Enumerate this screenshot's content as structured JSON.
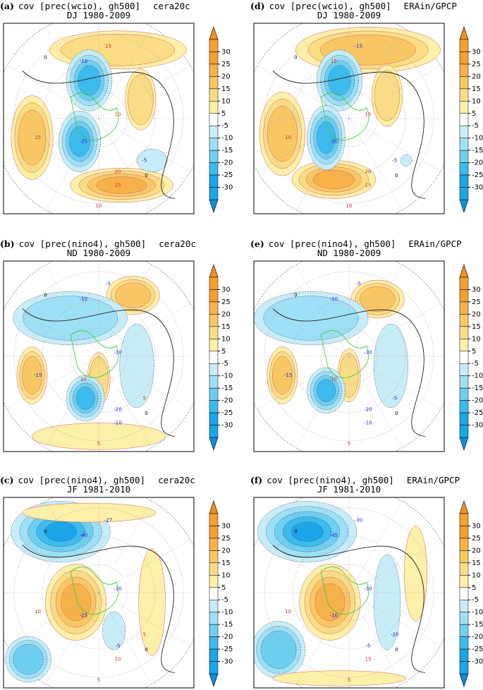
{
  "panels": [
    {
      "label": "(a)",
      "title": "cov [prec(wcio), gh500]",
      "dataset": "cera20c",
      "period": "DJ 1980-2009",
      "contour_labels": [
        "-10",
        "15",
        "10",
        "15",
        "-25",
        "20",
        "25",
        "10",
        "-5",
        "0",
        "0"
      ]
    },
    {
      "label": "(b)",
      "title": "cov [prec(nino4), gh500]",
      "dataset": "cera20c",
      "period": "ND 1980-2009",
      "contour_labels": [
        "-10",
        "-5",
        "-10",
        "-15",
        "10",
        "-20",
        "-10",
        "5",
        "5",
        "0",
        "0"
      ]
    },
    {
      "label": "(c)",
      "title": "cov [prec(nino4), gh500]",
      "dataset": "cera20c",
      "period": "JF 1981-2010",
      "contour_labels": [
        "-40",
        "-27",
        "-10",
        "10",
        "-15",
        "-5",
        "10",
        "5",
        "5",
        "0",
        "0"
      ]
    },
    {
      "label": "(d)",
      "title": "cov [prec(wcio), gh500]",
      "dataset": "ERAin/GPCP",
      "period": "DJ 1980-2009",
      "contour_labels": [
        "15",
        "-15",
        "15",
        "10",
        "-20",
        "20",
        "15",
        "10",
        "-5",
        "0",
        "0"
      ]
    },
    {
      "label": "(e)",
      "title": "cov [prec(nino4), gh500]",
      "dataset": "ERAin/GPCP",
      "period": "ND 1980-2009",
      "contour_labels": [
        "-10",
        "-5",
        "-10",
        "-15",
        "10",
        "-20",
        "-10",
        "5",
        "-5",
        "0",
        "0"
      ]
    },
    {
      "label": "(f)",
      "title": "cov [prec(nino4), gh500]",
      "dataset": "ERAin/GPCP",
      "period": "JF 1981-2010",
      "contour_labels": [
        "-45",
        "-30",
        "-10",
        "10",
        "-10",
        "-5",
        "15",
        "5",
        "-20",
        "0",
        "0"
      ]
    }
  ],
  "colorbar": {
    "ticks": [
      30,
      25,
      20,
      15,
      10,
      5,
      -5,
      -10,
      -15,
      -20,
      -25,
      -30
    ]
  }
}
